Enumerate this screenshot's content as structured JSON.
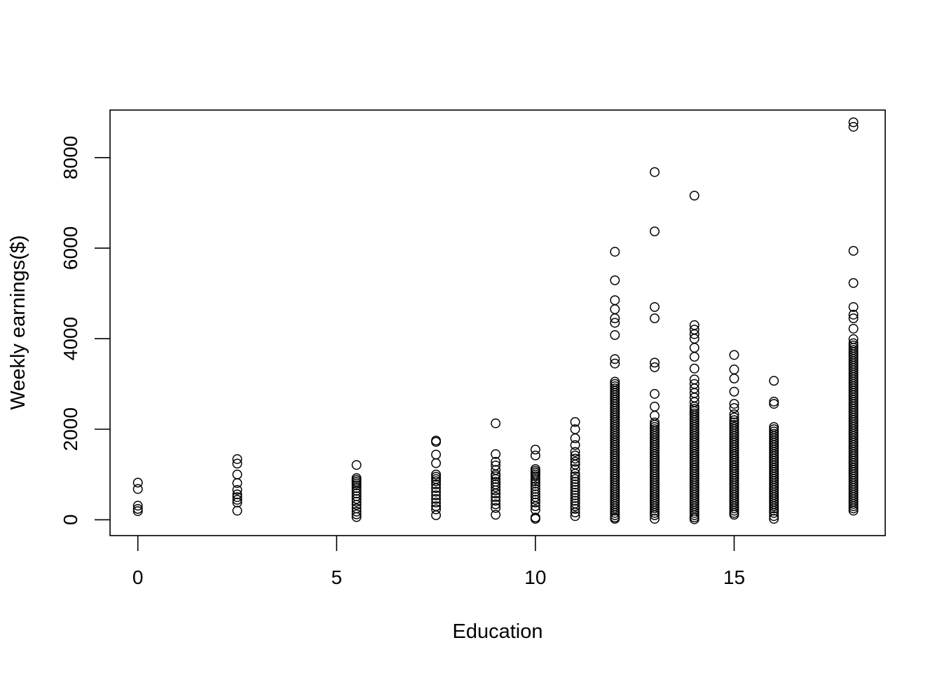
{
  "chart_data": {
    "type": "scatter",
    "title": "",
    "xlabel": "Education",
    "ylabel": "Weekly earnings($)",
    "xlim": [
      -0.7,
      18.8
    ],
    "ylim": [
      -350,
      9050
    ],
    "x_ticks": [
      0,
      5,
      10,
      15
    ],
    "y_ticks": [
      0,
      2000,
      4000,
      6000,
      8000
    ],
    "grid": false,
    "legend": "none",
    "marker": "open-circle",
    "groups": [
      {
        "x": 0,
        "y": [
          820,
          680,
          310,
          240,
          190
        ]
      },
      {
        "x": 2.5,
        "y": [
          1340,
          1240,
          1000,
          810,
          660,
          560,
          500,
          440,
          380,
          200
        ]
      },
      {
        "x": 5.5,
        "y": [
          1210,
          920,
          880,
          840,
          800,
          760,
          700,
          640,
          580,
          520,
          460,
          400,
          330,
          250,
          180,
          120,
          60
        ]
      },
      {
        "x": 7.5,
        "y": [
          1750,
          1720,
          1440,
          1250,
          1000,
          950,
          900,
          850,
          780,
          700,
          620,
          540,
          460,
          380,
          300,
          230,
          100
        ]
      },
      {
        "x": 9,
        "y": [
          2130,
          1450,
          1280,
          1200,
          1100,
          1000,
          960,
          900,
          840,
          780,
          720,
          650,
          580,
          500,
          420,
          340,
          260,
          110
        ]
      },
      {
        "x": 10,
        "y": [
          1550,
          1420,
          1120,
          1080,
          1040,
          1000,
          960,
          900,
          850,
          800,
          740,
          680,
          620,
          560,
          500,
          440,
          380,
          300,
          220,
          50,
          20
        ]
      },
      {
        "x": 11,
        "y": [
          2160,
          2000,
          1800,
          1650,
          1500,
          1420,
          1350,
          1280,
          1220,
          1120,
          1020,
          960,
          900,
          840,
          780,
          720,
          660,
          600,
          540,
          480,
          420,
          360,
          300,
          240,
          160,
          80
        ]
      },
      {
        "x": 12,
        "y": [
          5920,
          5290,
          4850,
          4650,
          4450,
          4350,
          4080,
          3550,
          3450,
          3050,
          3000,
          2950,
          2900,
          2850,
          2800,
          2750,
          2700,
          2650,
          2600,
          2550,
          2500,
          2450,
          2400,
          2350,
          2300,
          2250,
          2200,
          2150,
          2100,
          2050,
          2000,
          1950,
          1900,
          1850,
          1800,
          1750,
          1700,
          1650,
          1600,
          1550,
          1500,
          1450,
          1400,
          1350,
          1300,
          1250,
          1200,
          1150,
          1100,
          1050,
          1000,
          950,
          900,
          850,
          800,
          750,
          700,
          650,
          600,
          550,
          500,
          450,
          400,
          350,
          300,
          250,
          200,
          150,
          100,
          50,
          20
        ]
      },
      {
        "x": 13,
        "y": [
          7680,
          6370,
          4700,
          4450,
          3470,
          3370,
          2780,
          2500,
          2300,
          2150,
          2100,
          2050,
          2000,
          1950,
          1900,
          1850,
          1800,
          1750,
          1700,
          1650,
          1600,
          1550,
          1500,
          1450,
          1400,
          1350,
          1300,
          1250,
          1200,
          1150,
          1100,
          1050,
          1000,
          950,
          900,
          850,
          800,
          750,
          700,
          650,
          600,
          550,
          500,
          450,
          400,
          350,
          300,
          250,
          200,
          150,
          100,
          20
        ]
      },
      {
        "x": 14,
        "y": [
          7160,
          4300,
          4200,
          4100,
          4000,
          3800,
          3600,
          3340,
          3100,
          3000,
          2900,
          2800,
          2700,
          2600,
          2500,
          2450,
          2400,
          2350,
          2300,
          2250,
          2200,
          2150,
          2100,
          2050,
          2000,
          1950,
          1900,
          1850,
          1800,
          1750,
          1700,
          1650,
          1600,
          1550,
          1500,
          1450,
          1400,
          1350,
          1300,
          1250,
          1200,
          1150,
          1100,
          1050,
          1000,
          950,
          900,
          850,
          800,
          750,
          700,
          650,
          600,
          550,
          500,
          450,
          400,
          350,
          300,
          250,
          200,
          150,
          100,
          50,
          10
        ]
      },
      {
        "x": 15,
        "y": [
          3640,
          3320,
          3120,
          2830,
          2560,
          2470,
          2330,
          2260,
          2200,
          2150,
          2100,
          2050,
          2000,
          1950,
          1900,
          1850,
          1800,
          1750,
          1700,
          1650,
          1600,
          1550,
          1500,
          1450,
          1400,
          1350,
          1300,
          1250,
          1200,
          1150,
          1100,
          1050,
          1000,
          950,
          900,
          850,
          800,
          750,
          700,
          650,
          600,
          550,
          500,
          450,
          400,
          350,
          300,
          250,
          200,
          150,
          110
        ]
      },
      {
        "x": 16,
        "y": [
          3070,
          2610,
          2560,
          2050,
          2000,
          1950,
          1900,
          1850,
          1800,
          1750,
          1700,
          1650,
          1600,
          1550,
          1500,
          1450,
          1400,
          1350,
          1300,
          1250,
          1200,
          1150,
          1100,
          1050,
          1000,
          950,
          900,
          850,
          800,
          750,
          700,
          650,
          600,
          550,
          500,
          450,
          400,
          350,
          300,
          250,
          200,
          150,
          80,
          20
        ]
      },
      {
        "x": 18,
        "y": [
          8780,
          8680,
          5940,
          5230,
          4700,
          4530,
          4450,
          4220,
          3990,
          3900,
          3850,
          3800,
          3750,
          3700,
          3650,
          3600,
          3550,
          3500,
          3450,
          3400,
          3350,
          3300,
          3250,
          3200,
          3150,
          3100,
          3050,
          3000,
          2950,
          2900,
          2850,
          2800,
          2750,
          2700,
          2650,
          2600,
          2550,
          2500,
          2450,
          2400,
          2350,
          2300,
          2250,
          2200,
          2150,
          2100,
          2050,
          2000,
          1950,
          1900,
          1850,
          1800,
          1750,
          1700,
          1650,
          1600,
          1550,
          1500,
          1450,
          1400,
          1350,
          1300,
          1250,
          1200,
          1150,
          1100,
          1050,
          1000,
          950,
          900,
          850,
          800,
          750,
          700,
          650,
          600,
          550,
          500,
          450,
          400,
          350,
          300,
          250,
          200
        ]
      }
    ]
  }
}
